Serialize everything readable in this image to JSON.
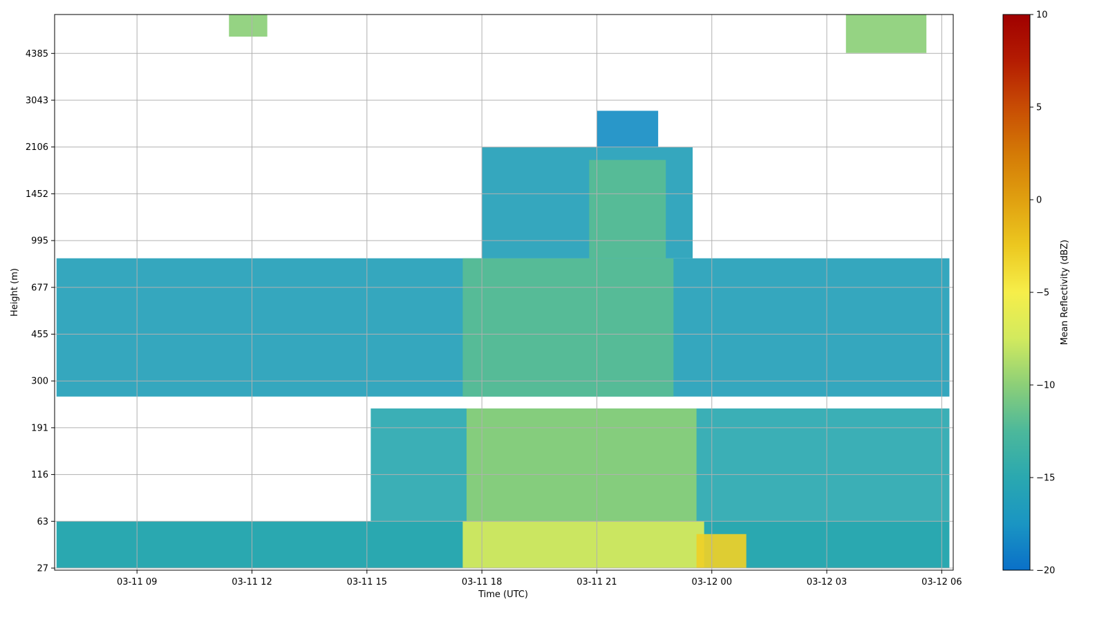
{
  "chart_data": {
    "type": "heatmap",
    "title": "",
    "xlabel": "Time (UTC)",
    "ylabel": "Height (m)",
    "x_ticks": [
      "03-11 09",
      "03-11 12",
      "03-11 15",
      "03-11 18",
      "03-11 21",
      "03-12 00",
      "03-12 03",
      "03-12 06"
    ],
    "x_tick_hours": [
      9,
      12,
      15,
      18,
      21,
      24,
      27,
      30
    ],
    "xlim_hours": [
      6.85,
      30.3
    ],
    "y_ticks": [
      "27",
      "63",
      "116",
      "191",
      "300",
      "455",
      "677",
      "995",
      "1452",
      "2106",
      "3043",
      "4385"
    ],
    "colorbar": {
      "label": "Mean Reflectivity (dBZ)",
      "ticks": [
        "10",
        "5",
        "0",
        "−5",
        "−10",
        "−15",
        "−20"
      ],
      "tick_values": [
        10,
        5,
        0,
        -5,
        -10,
        -15,
        -20
      ],
      "range": [
        -20,
        10
      ],
      "colors": [
        "#0a70c8",
        "#1a95c3",
        "#2aa8b0",
        "#4cb89b",
        "#8ccf78",
        "#d2ea5e",
        "#f6ee4a",
        "#ecc820",
        "#e0a010",
        "#d47a06",
        "#c84c04",
        "#b41c02",
        "#a00000"
      ]
    },
    "grid": true,
    "regions_dbz": [
      {
        "t0": 6.9,
        "t1": 30.2,
        "h0": 27,
        "h1": 63,
        "dbz": -15
      },
      {
        "t0": 17.5,
        "t1": 23.8,
        "h0": 27,
        "h1": 63,
        "dbz": -7
      },
      {
        "t0": 23.6,
        "t1": 24.9,
        "h0": 27,
        "h1": 50,
        "dbz": -3
      },
      {
        "t0": 15.1,
        "t1": 30.2,
        "h0": 63,
        "h1": 230,
        "dbz": -15
      },
      {
        "t0": 17.6,
        "t1": 23.6,
        "h0": 63,
        "h1": 230,
        "dbz": -10
      },
      {
        "t0": 6.9,
        "t1": 30.2,
        "h0": 258,
        "h1": 860,
        "dbz": -16
      },
      {
        "t0": 17.5,
        "t1": 23.0,
        "h0": 258,
        "h1": 860,
        "dbz": -12
      },
      {
        "t0": 18.0,
        "t1": 23.5,
        "h0": 860,
        "h1": 2106,
        "dbz": -16
      },
      {
        "t0": 20.8,
        "t1": 22.8,
        "h0": 860,
        "h1": 1900,
        "dbz": -12
      },
      {
        "t0": 21.0,
        "t1": 22.6,
        "h0": 2106,
        "h1": 2800,
        "dbz": -18
      },
      {
        "t0": 11.4,
        "t1": 12.4,
        "h0": 5000,
        "h1": 6200,
        "dbz": -10
      },
      {
        "t0": 27.5,
        "t1": 29.6,
        "h0": 4400,
        "h1": 6200,
        "dbz": -10
      }
    ]
  }
}
